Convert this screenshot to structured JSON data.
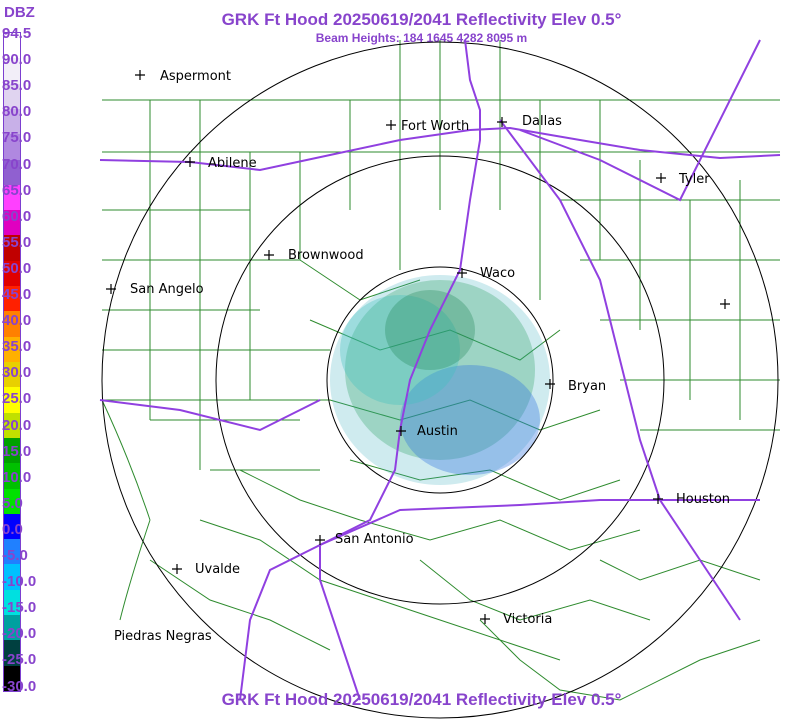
{
  "title": "GRK Ft Hood 20250619/2041 Reflectivity Elev 0.5°",
  "subtitle": "Beam Heights: 184 1645 4282 8095 m",
  "footer_title": "GRK Ft Hood 20250619/2041 Reflectivity Elev 0.5°",
  "legend": {
    "title": "DBZ",
    "labels": [
      "94.5",
      "90.0",
      "85.0",
      "80.0",
      "75.0",
      "70.0",
      "65.0",
      "60.0",
      "55.0",
      "50.0",
      "45.0",
      "40.0",
      "35.0",
      "30.0",
      "25.0",
      "20.0",
      "15.0",
      "10.0",
      "5.0",
      "0.0",
      "-5.0",
      "-10.0",
      "-15.0",
      "-20.0",
      "-25.0",
      "-30.0"
    ],
    "colors": [
      "#ffffff",
      "#f2eef8",
      "#e0d4f0",
      "#c8b0e8",
      "#b088e0",
      "#9060d0",
      "#ff40ff",
      "#e000c0",
      "#c00000",
      "#e00000",
      "#ff2000",
      "#ff8000",
      "#ffb000",
      "#e8d000",
      "#ffff00",
      "#c0e000",
      "#00a000",
      "#00c000",
      "#00e000",
      "#0000ff",
      "#2080ff",
      "#00c0ff",
      "#00e0e0",
      "#00a0a0",
      "#004040",
      "#000000"
    ]
  },
  "cities": [
    {
      "name": "Aspermont"
    },
    {
      "name": "Abilene"
    },
    {
      "name": "Fort Worth"
    },
    {
      "name": "Dallas"
    },
    {
      "name": "Tyler"
    },
    {
      "name": "Brownwood"
    },
    {
      "name": "San Angelo"
    },
    {
      "name": "Waco"
    },
    {
      "name": "Bryan"
    },
    {
      "name": "Austin"
    },
    {
      "name": "Houston"
    },
    {
      "name": "San Antonio"
    },
    {
      "name": "Uvalde"
    },
    {
      "name": "Victoria"
    },
    {
      "name": "Piedras Negras"
    },
    {
      "name": ""
    }
  ],
  "colors": {
    "text": "#8844cc",
    "county_lines": "#2e8b2e",
    "highways": "#9040e0",
    "range_rings": "#000000"
  }
}
